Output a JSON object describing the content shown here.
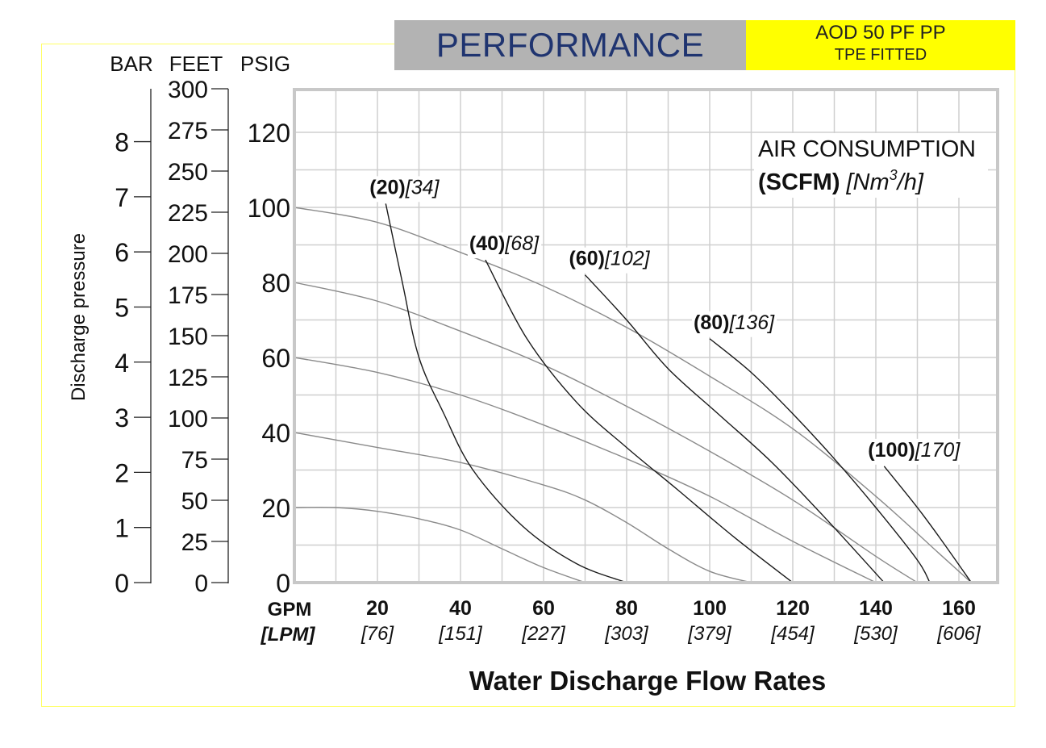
{
  "header": {
    "title": "PERFORMANCE",
    "model_line1": "AOD 50 PF PP",
    "model_line2": "TPE FITTED",
    "colors": {
      "title_bg": "#b3b3b3",
      "title_text": "#1f3470",
      "model_bg": "#ffff00",
      "frame": "#ffff66"
    }
  },
  "chart_data": {
    "type": "line",
    "title": "PERFORMANCE",
    "xlabel": "Water Discharge Flow Rates",
    "x_unit_primary": "GPM",
    "x_unit_secondary": "[LPM]",
    "xlim": [
      0,
      169
    ],
    "x_ticks": [
      {
        "gpm": "0",
        "lpm": ""
      },
      {
        "gpm": "20",
        "lpm": "[76]"
      },
      {
        "gpm": "40",
        "lpm": "[151]"
      },
      {
        "gpm": "60",
        "lpm": "[227]"
      },
      {
        "gpm": "80",
        "lpm": "[303]"
      },
      {
        "gpm": "100",
        "lpm": "[379]"
      },
      {
        "gpm": "120",
        "lpm": "[454]"
      },
      {
        "gpm": "140",
        "lpm": "[530]"
      },
      {
        "gpm": "160",
        "lpm": "[606]"
      }
    ],
    "ylabel": "Discharge pressure",
    "ylim": [
      0,
      130
    ],
    "y_axes": {
      "bar": {
        "label": "BAR",
        "ticks": [
          "0",
          "1",
          "2",
          "3",
          "4",
          "5",
          "6",
          "7",
          "8"
        ],
        "max": 8.96
      },
      "feet": {
        "label": "FEET",
        "ticks": [
          "0",
          "25",
          "50",
          "75",
          "100",
          "125",
          "150",
          "175",
          "200",
          "225",
          "250",
          "275",
          "300"
        ],
        "max": 300
      },
      "psig": {
        "label": "PSIG",
        "ticks": [
          "0",
          "20",
          "40",
          "60",
          "80",
          "100",
          "120"
        ]
      }
    },
    "grid": true,
    "pressure_series": [
      {
        "name": "20 psig",
        "points": [
          [
            0,
            20
          ],
          [
            10,
            20
          ],
          [
            20,
            19
          ],
          [
            30,
            17
          ],
          [
            40,
            14
          ],
          [
            50,
            9
          ],
          [
            60,
            4
          ],
          [
            70,
            0
          ]
        ]
      },
      {
        "name": "40 psig",
        "points": [
          [
            0,
            40
          ],
          [
            20,
            36
          ],
          [
            40,
            32
          ],
          [
            60,
            26
          ],
          [
            70,
            22
          ],
          [
            80,
            16
          ],
          [
            90,
            9
          ],
          [
            100,
            3
          ],
          [
            110,
            0
          ]
        ]
      },
      {
        "name": "60 psig",
        "points": [
          [
            0,
            60
          ],
          [
            20,
            56
          ],
          [
            40,
            50
          ],
          [
            60,
            42
          ],
          [
            80,
            33
          ],
          [
            100,
            23
          ],
          [
            120,
            11
          ],
          [
            140,
            0
          ]
        ]
      },
      {
        "name": "80 psig",
        "points": [
          [
            0,
            80
          ],
          [
            20,
            75
          ],
          [
            40,
            67
          ],
          [
            60,
            58
          ],
          [
            80,
            47
          ],
          [
            100,
            35
          ],
          [
            120,
            22
          ],
          [
            140,
            7
          ],
          [
            150,
            0
          ]
        ]
      },
      {
        "name": "100 psig",
        "points": [
          [
            0,
            100
          ],
          [
            20,
            96
          ],
          [
            40,
            88
          ],
          [
            60,
            79
          ],
          [
            80,
            68
          ],
          [
            100,
            55
          ],
          [
            120,
            41
          ],
          [
            140,
            23
          ],
          [
            155,
            8
          ],
          [
            163,
            0
          ]
        ]
      }
    ],
    "air_series": [
      {
        "label_scfm": "(20)",
        "label_nm3h": "[34]",
        "points": [
          [
            22,
            101
          ],
          [
            26,
            80
          ],
          [
            30,
            60
          ],
          [
            36,
            45
          ],
          [
            43,
            30
          ],
          [
            55,
            15
          ],
          [
            68,
            5
          ],
          [
            80,
            0
          ]
        ]
      },
      {
        "label_scfm": "(40)",
        "label_nm3h": "[68]",
        "points": [
          [
            46,
            86
          ],
          [
            56,
            65
          ],
          [
            68,
            48
          ],
          [
            80,
            36
          ],
          [
            92,
            25
          ],
          [
            106,
            12
          ],
          [
            120,
            0
          ]
        ]
      },
      {
        "label_scfm": "(60)",
        "label_nm3h": "[102]",
        "points": [
          [
            70,
            82
          ],
          [
            80,
            70
          ],
          [
            90,
            57
          ],
          [
            102,
            45
          ],
          [
            115,
            32
          ],
          [
            128,
            17
          ],
          [
            142,
            0
          ]
        ]
      },
      {
        "label_scfm": "(80)",
        "label_nm3h": "[136]",
        "points": [
          [
            100,
            65
          ],
          [
            110,
            56
          ],
          [
            120,
            45
          ],
          [
            130,
            33
          ],
          [
            140,
            20
          ],
          [
            150,
            6
          ],
          [
            153,
            0
          ]
        ]
      },
      {
        "label_scfm": "(100)",
        "label_nm3h": "[170]",
        "points": [
          [
            142,
            31
          ],
          [
            150,
            20
          ],
          [
            156,
            11
          ],
          [
            163,
            0
          ]
        ]
      }
    ],
    "legend": {
      "line1": "AIR CONSUMPTION",
      "bold": "(SCFM)",
      "italic": "[Nm",
      "sup": "3",
      "italic_end": "/h]",
      "placement": "top-right"
    }
  }
}
